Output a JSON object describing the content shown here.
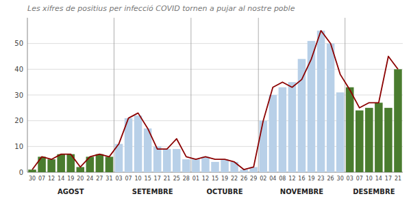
{
  "chart_data": {
    "type": "bar",
    "title": "Les xifres de positius per infecció COVID tornen a pujar al nostre poble",
    "categories": [
      "30",
      "07",
      "12",
      "14",
      "19",
      "20",
      "24",
      "27",
      "31",
      "03",
      "07",
      "10",
      "15",
      "17",
      "21",
      "25",
      "28",
      "01",
      "12",
      "15",
      "19",
      "22",
      "26",
      "29",
      "02",
      "04",
      "08",
      "12",
      "16",
      "19",
      "23",
      "26",
      "30",
      "03",
      "07",
      "10",
      "14",
      "17",
      "21"
    ],
    "series": [
      {
        "type": "bar",
        "colors": [
          "#4a7c2f",
          "#4a7c2f",
          "#4a7c2f",
          "#4a7c2f",
          "#4a7c2f",
          "#4a7c2f",
          "#4a7c2f",
          "#4a7c2f",
          "#4a7c2f",
          "#b8d0e8",
          "#b8d0e8",
          "#b8d0e8",
          "#b8d0e8",
          "#b8d0e8",
          "#b8d0e8",
          "#b8d0e8",
          "#b8d0e8",
          "#b8d0e8",
          "#b8d0e8",
          "#b8d0e8",
          "#b8d0e8",
          "#b8d0e8",
          "#b8d0e8",
          "#b8d0e8",
          "#b8d0e8",
          "#b8d0e8",
          "#b8d0e8",
          "#b8d0e8",
          "#b8d0e8",
          "#b8d0e8",
          "#b8d0e8",
          "#b8d0e8",
          "#b8d0e8",
          "#4a7c2f",
          "#4a7c2f",
          "#4a7c2f",
          "#4a7c2f",
          "#4a7c2f",
          "#4a7c2f"
        ],
        "values": [
          1,
          6,
          5,
          7,
          7,
          2,
          6,
          7,
          6,
          11,
          21,
          22,
          17,
          10,
          9,
          9,
          5,
          5,
          6,
          4,
          5,
          4,
          1,
          2,
          20,
          30,
          33,
          35,
          44,
          51,
          55,
          50,
          31,
          33,
          24,
          25,
          27,
          25,
          40
        ]
      },
      {
        "type": "line",
        "color": "#8b0000",
        "values": [
          1,
          6,
          5,
          7,
          7,
          2,
          6,
          7,
          6,
          11,
          21,
          23,
          17,
          9,
          9,
          13,
          6,
          5,
          6,
          5,
          5,
          4,
          1,
          2,
          20,
          33,
          35,
          33,
          36,
          44,
          55,
          50,
          38,
          32,
          25,
          27,
          27,
          45,
          40
        ]
      }
    ],
    "ylim": [
      0,
      60
    ],
    "yticks": [
      0,
      10,
      20,
      30,
      40,
      50
    ],
    "grid": true,
    "annotations": [
      {
        "text": "AGOST",
        "x": 4.0
      },
      {
        "text": "SETEMBRE",
        "x": 12.5
      },
      {
        "text": "OCTUBRE",
        "x": 20.0
      },
      {
        "text": "NOVEMBRE",
        "x": 28.0
      },
      {
        "text": "DESEMBRE",
        "x": 35.5
      }
    ],
    "separators": [
      8.5,
      16.5,
      23.5,
      32.5
    ]
  }
}
